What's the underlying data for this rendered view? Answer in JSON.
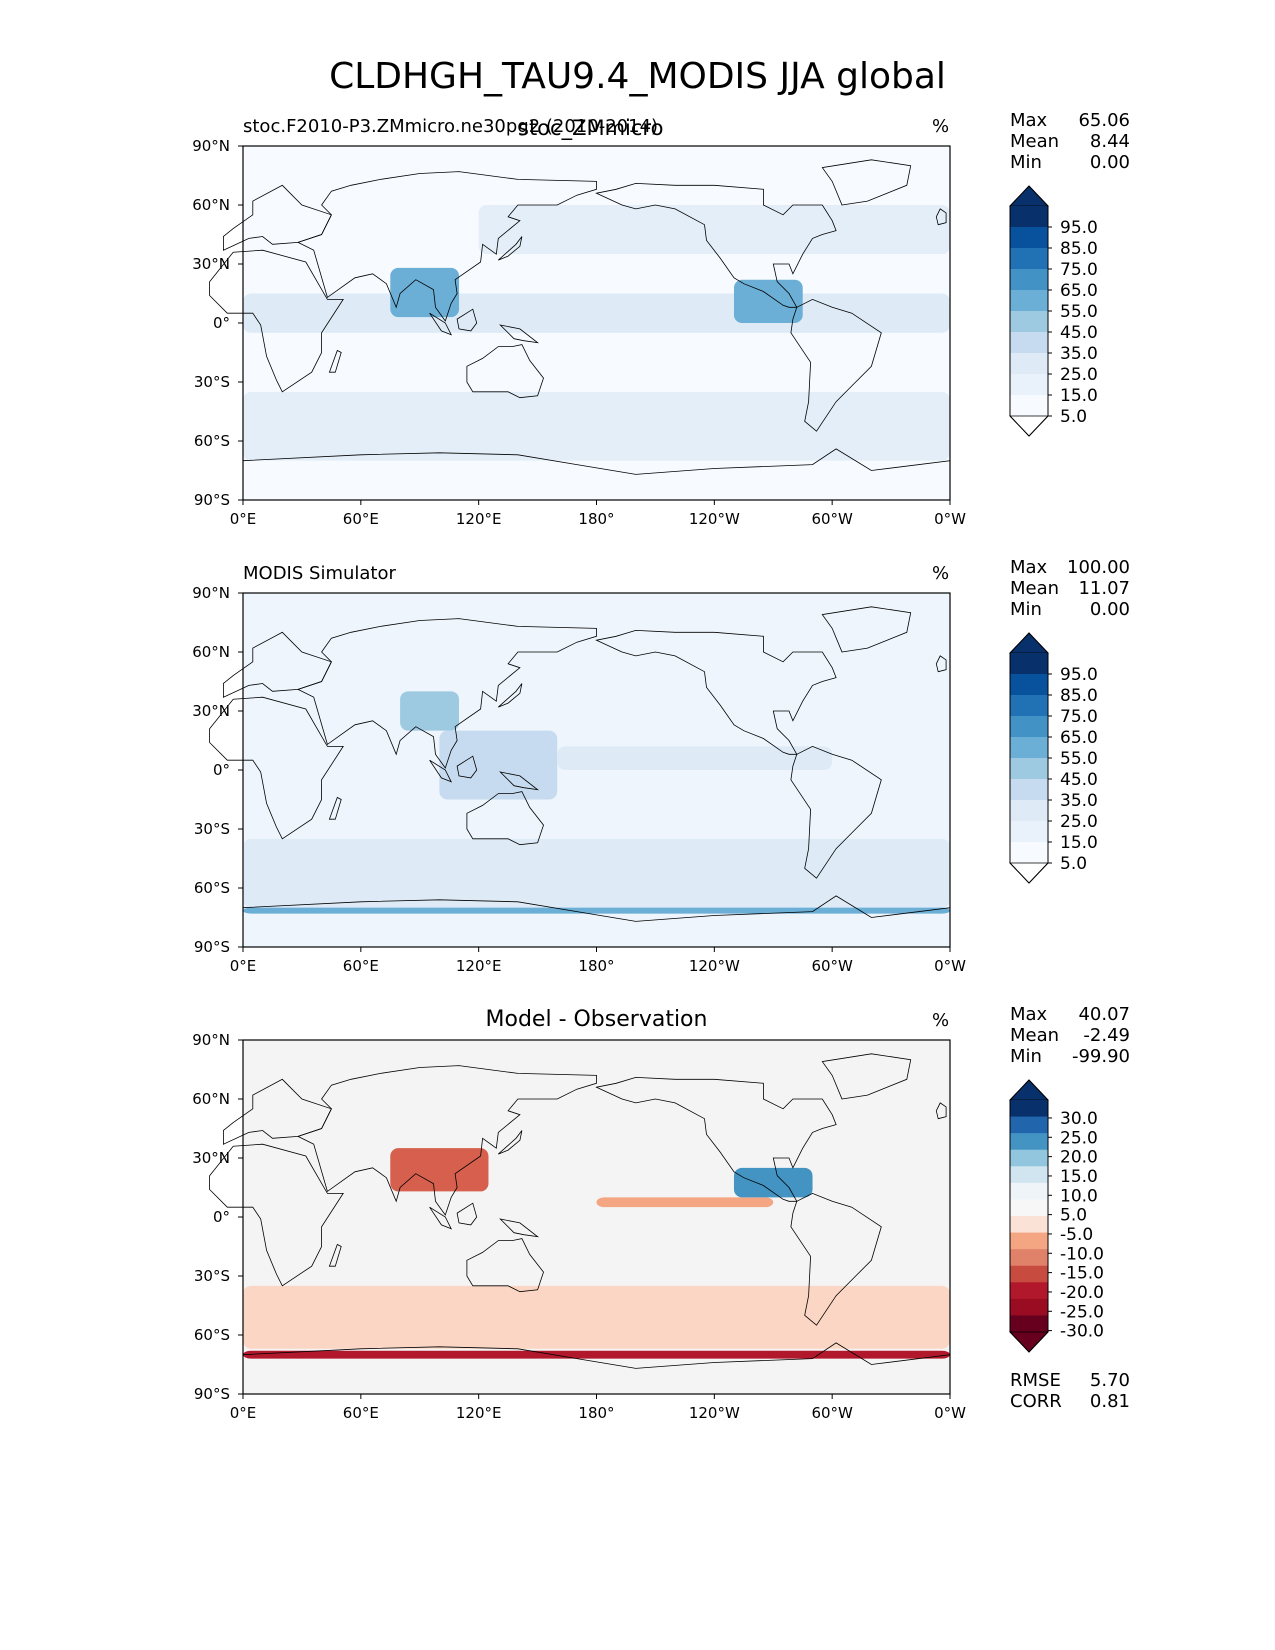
{
  "figure": {
    "suptitle": "CLDHGH_TAU9.4_MODIS JJA global"
  },
  "chart_data": [
    {
      "type": "heatmap",
      "title": "stoc.F2010-P3.ZMmicro.ne30pg2 (2010-2014)",
      "center_title": "stoc_ZMmicro",
      "units": "%",
      "projection": "PlateCarree, central longitude 180",
      "x_tick_labels": [
        "0°E",
        "60°E",
        "120°E",
        "180°",
        "120°W",
        "60°W",
        "0°W"
      ],
      "y_tick_labels": [
        "90°N",
        "60°N",
        "30°N",
        "0°",
        "30°S",
        "60°S",
        "90°S"
      ],
      "xlim": [
        0,
        360
      ],
      "ylim": [
        -90,
        90
      ],
      "stats": {
        "Max": "65.06",
        "Mean": "8.44",
        "Min": "0.00"
      },
      "colorbar": {
        "levels": [
          "95.0",
          "85.0",
          "75.0",
          "65.0",
          "55.0",
          "45.0",
          "35.0",
          "25.0",
          "15.0",
          "5.0"
        ],
        "colors": [
          "#08306b",
          "#08519c",
          "#2171b5",
          "#4292c6",
          "#6baed6",
          "#9ecae1",
          "#c6dbef",
          "#deebf7",
          "#e9f2fa",
          "#f7fbff"
        ],
        "extend": "both",
        "top_extend_color": "#08306b",
        "bottom_extend_color": "#ffffff"
      },
      "field": {
        "background_color": "#f7fbff",
        "regions": [
          {
            "name": "southern ocean band",
            "color": "#e3eef8"
          },
          {
            "name": "north pacific band",
            "color": "#e3eef8"
          },
          {
            "name": "itcz",
            "color": "#deebf7"
          },
          {
            "name": "bay of bengal convection",
            "color": "#6baed6"
          },
          {
            "name": "central america convection",
            "color": "#6baed6"
          }
        ]
      }
    },
    {
      "type": "heatmap",
      "title": "MODIS Simulator",
      "units": "%",
      "x_tick_labels": [
        "0°E",
        "60°E",
        "120°E",
        "180°",
        "120°W",
        "60°W",
        "0°W"
      ],
      "y_tick_labels": [
        "90°N",
        "60°N",
        "30°N",
        "0°",
        "30°S",
        "60°S",
        "90°S"
      ],
      "xlim": [
        0,
        360
      ],
      "ylim": [
        -90,
        90
      ],
      "stats": {
        "Max": "100.00",
        "Mean": "11.07",
        "Min": "0.00"
      },
      "colorbar": {
        "levels": [
          "95.0",
          "85.0",
          "75.0",
          "65.0",
          "55.0",
          "45.0",
          "35.0",
          "25.0",
          "15.0",
          "5.0"
        ],
        "colors": [
          "#08306b",
          "#08519c",
          "#2171b5",
          "#4292c6",
          "#6baed6",
          "#9ecae1",
          "#c6dbef",
          "#deebf7",
          "#e9f2fa",
          "#f7fbff"
        ],
        "extend": "both",
        "top_extend_color": "#08306b",
        "bottom_extend_color": "#ffffff"
      },
      "field": {
        "background_color": "#eef5fc",
        "regions": [
          {
            "name": "southern ocean band",
            "color": "#deebf7"
          },
          {
            "name": "antarctic coast edge",
            "color": "#6baed6"
          },
          {
            "name": "tibetan plateau",
            "color": "#9ecae1"
          },
          {
            "name": "warm pool",
            "color": "#c6dbef"
          },
          {
            "name": "itcz",
            "color": "#deebf7"
          }
        ]
      }
    },
    {
      "type": "heatmap",
      "title": "Model - Observation",
      "units": "%",
      "x_tick_labels": [
        "0°E",
        "60°E",
        "120°E",
        "180°",
        "120°W",
        "60°W",
        "0°W"
      ],
      "y_tick_labels": [
        "90°N",
        "60°N",
        "30°N",
        "0°",
        "30°S",
        "60°S",
        "90°S"
      ],
      "xlim": [
        0,
        360
      ],
      "ylim": [
        -90,
        90
      ],
      "stats": {
        "Max": "40.07",
        "Mean": "-2.49",
        "Min": "-99.90"
      },
      "metrics": {
        "RMSE": "5.70",
        "CORR": "0.81"
      },
      "colorbar": {
        "levels": [
          "30.0",
          "25.0",
          "20.0",
          "15.0",
          "10.0",
          "5.0",
          "-5.0",
          "-10.0",
          "-15.0",
          "-20.0",
          "-25.0",
          "-30.0"
        ],
        "colors": [
          "#08306b",
          "#2166ac",
          "#4393c3",
          "#92c5de",
          "#d1e5f0",
          "#eef4f8",
          "#f7f7f7",
          "#fbe2d6",
          "#f4a582",
          "#e0826a",
          "#c84b3f",
          "#b2182b",
          "#9a0c22",
          "#67001f"
        ],
        "extend": "both",
        "top_extend_color": "#08306b",
        "bottom_extend_color": "#67001f"
      },
      "field": {
        "background_color": "#f4f4f4",
        "regions": [
          {
            "name": "southern ocean negative",
            "color": "#fbd6c4"
          },
          {
            "name": "antarctic coast strong negative",
            "color": "#b2182b"
          },
          {
            "name": "itcz pacific negative",
            "color": "#f4a582"
          },
          {
            "name": "south asia mixed",
            "color": "#d6604d"
          },
          {
            "name": "central america positive",
            "color": "#4393c3"
          }
        ]
      }
    }
  ]
}
